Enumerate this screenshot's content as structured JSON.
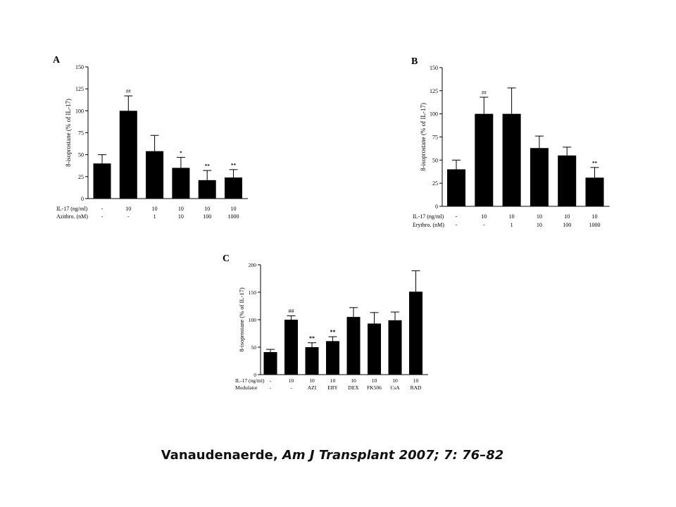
{
  "slide": {
    "citation_author": "Vanaudenaerde,",
    "citation_journal": " Am J Transplant 2007; 7: 76–82"
  },
  "chart_data": [
    {
      "panel": "A",
      "type": "bar",
      "ylabel": "8-isoprostane (% of IL-17)",
      "ylim": [
        0,
        150
      ],
      "yticks": [
        0,
        25,
        50,
        75,
        100,
        125,
        150
      ],
      "values": [
        40,
        100,
        54,
        35,
        21,
        24
      ],
      "errors": [
        10,
        17,
        18,
        12,
        11,
        9
      ],
      "sig": [
        "",
        "##",
        "",
        "*",
        "**",
        "**"
      ],
      "row_labels": [
        "IL-17 (ng/ml)",
        "Azithro. (nM)"
      ],
      "rows": [
        [
          "-",
          "10",
          "10",
          "10",
          "10",
          "10"
        ],
        [
          "-",
          "-",
          "1",
          "10",
          "100",
          "1000"
        ]
      ]
    },
    {
      "panel": "B",
      "type": "bar",
      "ylabel": "8-isoprostane (% of IL-17)",
      "ylim": [
        0,
        150
      ],
      "yticks": [
        0,
        25,
        50,
        75,
        100,
        125,
        150
      ],
      "values": [
        40,
        100,
        100,
        63,
        55,
        31
      ],
      "errors": [
        10,
        18,
        28,
        13,
        9,
        11
      ],
      "sig": [
        "",
        "##",
        "",
        "",
        "",
        "**"
      ],
      "row_labels": [
        "IL-17 (ng/ml)",
        "Erythro. (nM)"
      ],
      "rows": [
        [
          "-",
          "10",
          "10",
          "10",
          "10",
          "10"
        ],
        [
          "-",
          "-",
          "1",
          "10",
          "100",
          "1000"
        ]
      ]
    },
    {
      "panel": "C",
      "type": "bar",
      "ylabel": "8-isoprostane (% of IL-17)",
      "ylim": [
        0,
        200
      ],
      "yticks": [
        0,
        50,
        100,
        150,
        200
      ],
      "values": [
        41,
        100,
        50,
        61,
        105,
        93,
        99,
        151
      ],
      "errors": [
        5,
        7,
        8,
        8,
        17,
        20,
        15,
        38
      ],
      "sig": [
        "",
        "##",
        "**",
        "**",
        "",
        "",
        "",
        ""
      ],
      "row_labels": [
        "IL-17 (ng/ml)",
        "Modulator"
      ],
      "rows": [
        [
          "-",
          "10",
          "10",
          "10",
          "10",
          "10",
          "10",
          "10"
        ],
        [
          "-",
          "-",
          "AZI",
          "ERY",
          "DEX",
          "FK506",
          "CsA",
          "RAD"
        ]
      ]
    }
  ]
}
